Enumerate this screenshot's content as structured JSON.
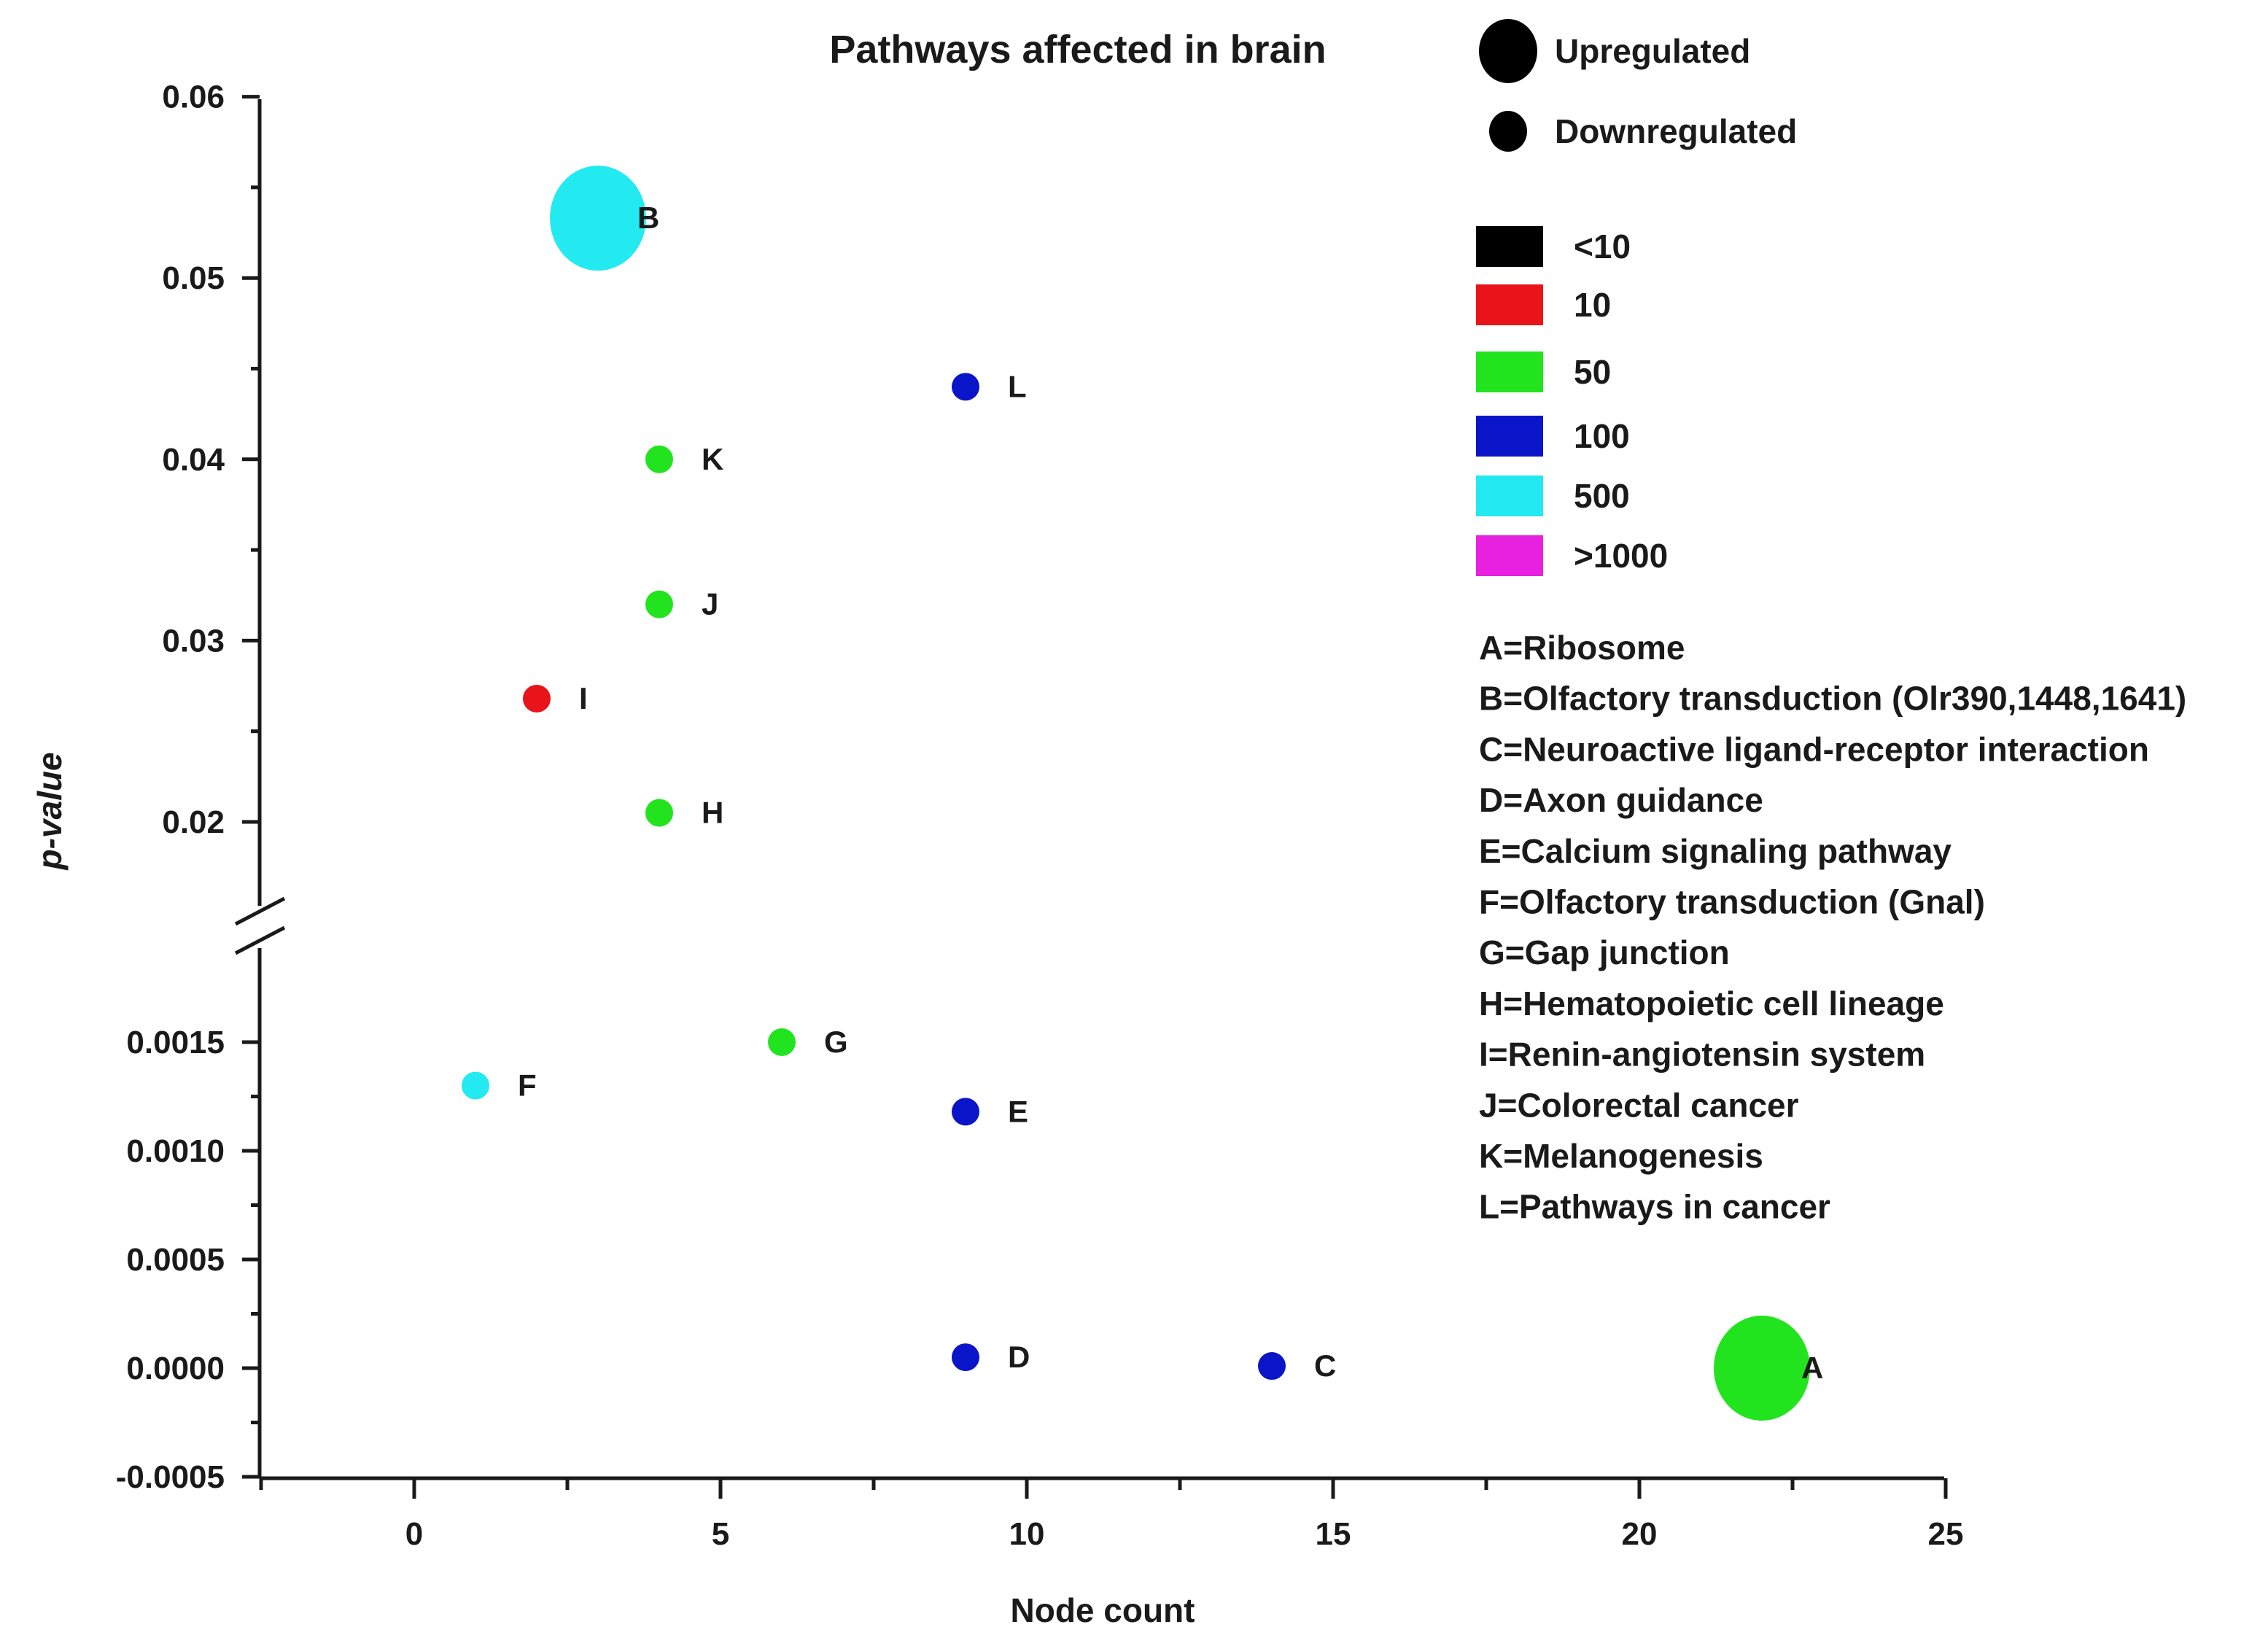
{
  "colors": {
    "<10": "#000000",
    "10": "#e8141a",
    "50": "#22e41e",
    "100": "#0a14c8",
    "500": "#22eaf0",
    ">1000": "#e820e0",
    "axis": "#1a1a1a"
  },
  "chart_data": {
    "type": "scatter",
    "title": "Pathways affected in brain",
    "xlabel": "Node count",
    "ylabel": "p-value",
    "xlim": [
      -2.5,
      25
    ],
    "x_ticks": [
      0,
      5,
      10,
      15,
      20,
      25
    ],
    "x_tick_labels": [
      "0",
      "5",
      "10",
      "15",
      "20",
      "25"
    ],
    "y_axis_break": true,
    "y_upper_segment": {
      "ylim": [
        0.0155,
        0.06
      ],
      "ticks": [
        0.02,
        0.03,
        0.04,
        0.05,
        0.06
      ],
      "tick_labels": [
        "0.02",
        "0.03",
        "0.04",
        "0.05",
        "0.06"
      ]
    },
    "y_lower_segment": {
      "ylim": [
        -0.0005,
        0.0019
      ],
      "ticks": [
        -0.0005,
        0.0,
        0.0005,
        0.001,
        0.0015
      ],
      "tick_labels": [
        "-0.0005",
        "0.0000",
        "0.0005",
        "0.0010",
        "0.0015"
      ]
    },
    "points": [
      {
        "label": "A",
        "x": 22,
        "y": 0.0,
        "segment": "lower",
        "color_category": "50",
        "regulation": "Upregulated"
      },
      {
        "label": "B",
        "x": 3,
        "y": 0.0533,
        "segment": "upper",
        "color_category": "500",
        "regulation": "Upregulated"
      },
      {
        "label": "C",
        "x": 14,
        "y": 1e-05,
        "segment": "lower",
        "color_category": "100",
        "regulation": "Downregulated"
      },
      {
        "label": "D",
        "x": 9,
        "y": 5e-05,
        "segment": "lower",
        "color_category": "100",
        "regulation": "Downregulated"
      },
      {
        "label": "E",
        "x": 9,
        "y": 0.00118,
        "segment": "lower",
        "color_category": "100",
        "regulation": "Downregulated"
      },
      {
        "label": "F",
        "x": 1,
        "y": 0.0013,
        "segment": "lower",
        "color_category": "500",
        "regulation": "Downregulated"
      },
      {
        "label": "G",
        "x": 6,
        "y": 0.0015,
        "segment": "lower",
        "color_category": "50",
        "regulation": "Downregulated"
      },
      {
        "label": "H",
        "x": 4,
        "y": 0.0205,
        "segment": "upper",
        "color_category": "50",
        "regulation": "Downregulated"
      },
      {
        "label": "I",
        "x": 2,
        "y": 0.0268,
        "segment": "upper",
        "color_category": "10",
        "regulation": "Downregulated"
      },
      {
        "label": "J",
        "x": 4,
        "y": 0.032,
        "segment": "upper",
        "color_category": "50",
        "regulation": "Downregulated"
      },
      {
        "label": "K",
        "x": 4,
        "y": 0.04,
        "segment": "upper",
        "color_category": "50",
        "regulation": "Downregulated"
      },
      {
        "label": "L",
        "x": 9,
        "y": 0.044,
        "segment": "upper",
        "color_category": "100",
        "regulation": "Downregulated"
      }
    ],
    "size_legend": [
      {
        "label": "Upregulated",
        "size": "large"
      },
      {
        "label": "Downregulated",
        "size": "small"
      }
    ],
    "color_legend": [
      {
        "label": "<10",
        "category": "<10"
      },
      {
        "label": "10",
        "category": "10"
      },
      {
        "label": "50",
        "category": "50"
      },
      {
        "label": "100",
        "category": "100"
      },
      {
        "label": "500",
        "category": "500"
      },
      {
        "label": ">1000",
        "category": ">1000"
      }
    ],
    "pathway_key": [
      "A=Ribosome",
      "B=Olfactory transduction (Olr390,1448,1641)",
      "C=Neuroactive ligand-receptor interaction",
      "D=Axon guidance",
      "E=Calcium signaling pathway",
      "F=Olfactory transduction (Gnal)",
      "G=Gap junction",
      "H=Hematopoietic cell lineage",
      "I=Renin-angiotensin system",
      "J=Colorectal cancer",
      "K=Melanogenesis",
      "L=Pathways in cancer"
    ]
  }
}
